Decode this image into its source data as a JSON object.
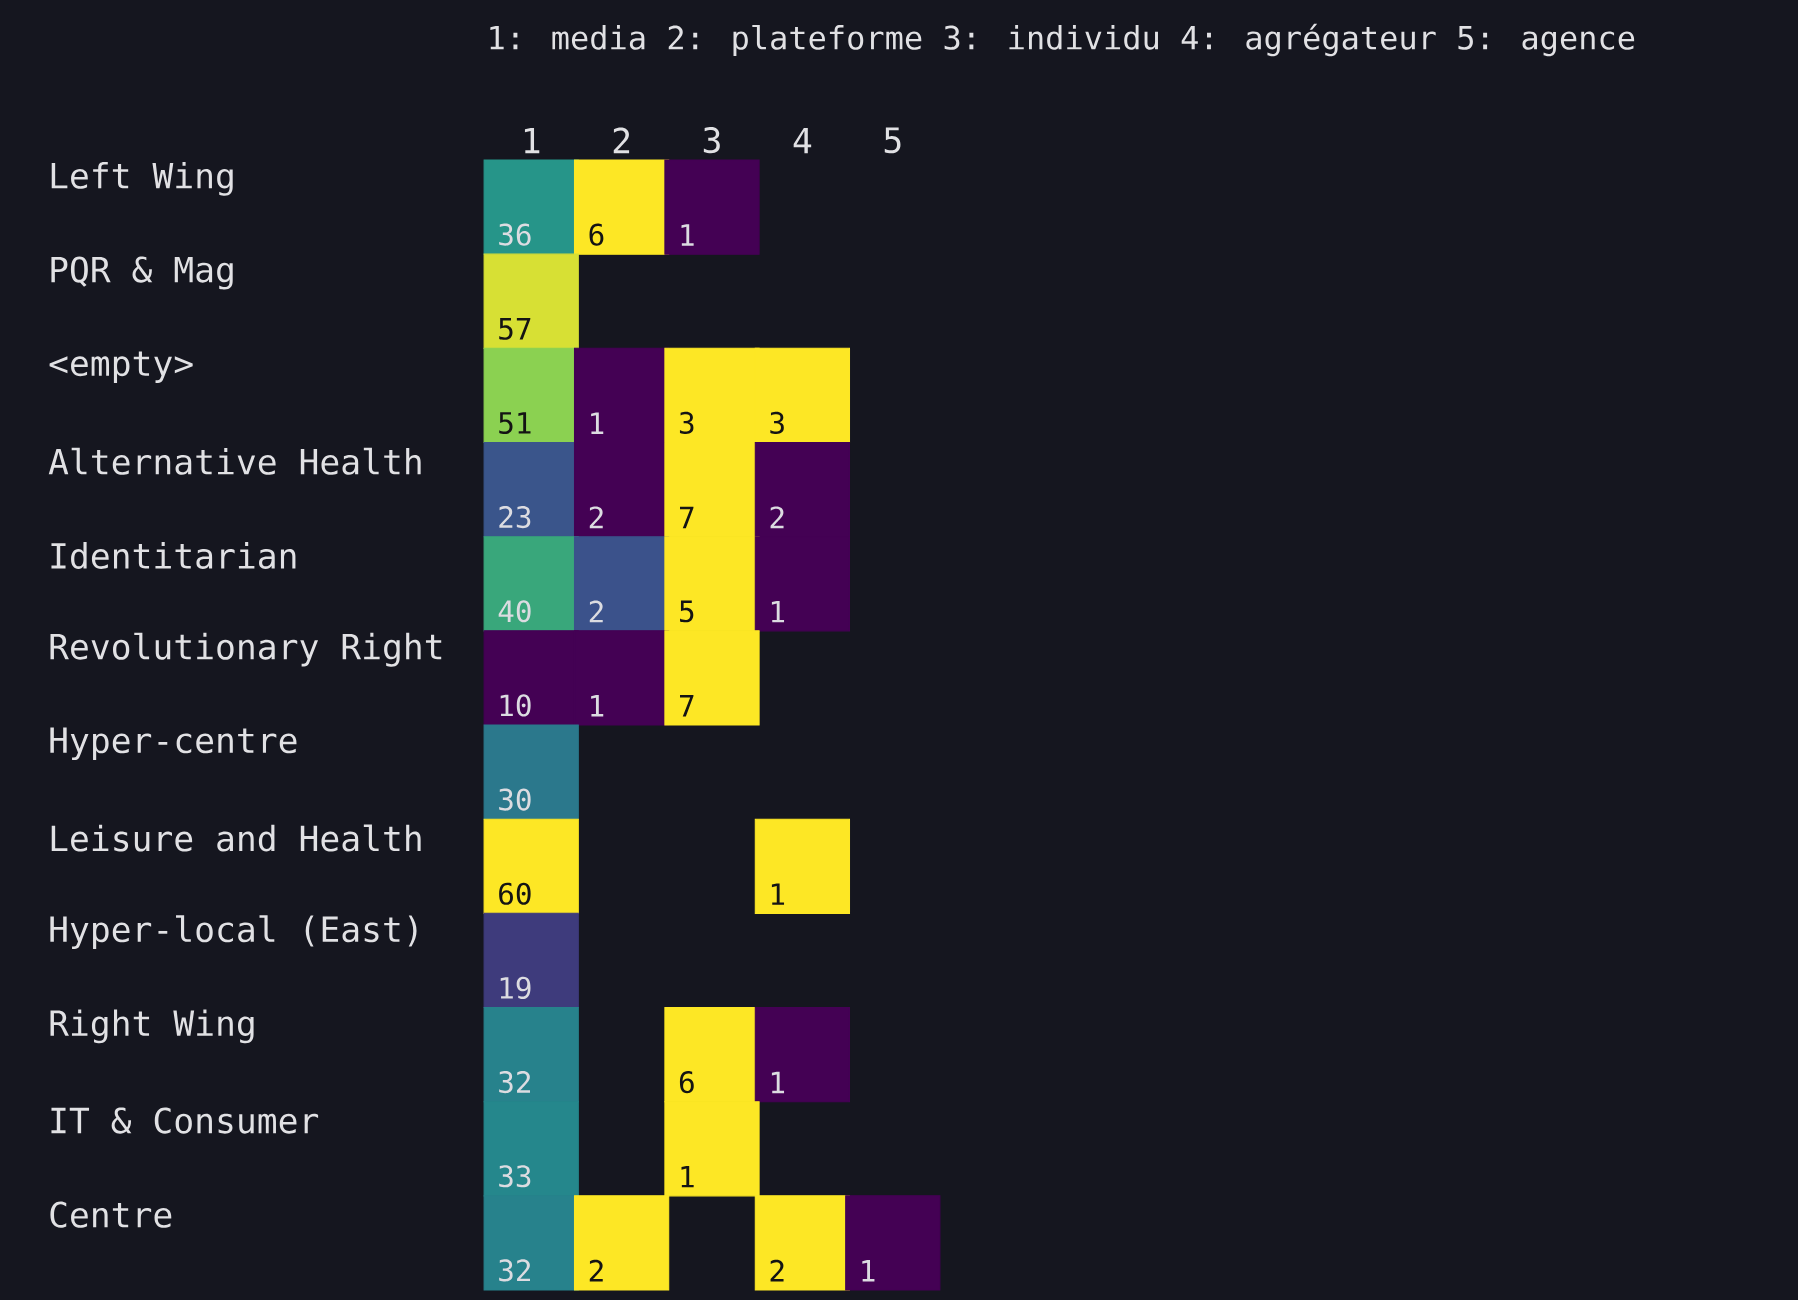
{
  "chart_data": {
    "type": "heatmap",
    "data_labels": true,
    "annotations": [
      "1: media",
      "2: plateforme",
      "3: individu",
      "4: agrégateur",
      "5: agence"
    ],
    "categories": [
      "1",
      "2",
      "3",
      "4",
      "5"
    ],
    "y_categories": [
      "Left Wing",
      "PQR & Mag",
      "<empty>",
      "Alternative Health",
      "Identitarian",
      "Revolutionary Right",
      "Hyper-centre",
      "Leisure and Health",
      "Hyper-local (East)",
      "Right Wing",
      "IT & Consumer",
      "Centre"
    ],
    "cells": [
      [
        36,
        6,
        1,
        null,
        null
      ],
      [
        57,
        null,
        null,
        null,
        null
      ],
      [
        51,
        1,
        3,
        3,
        null
      ],
      [
        23,
        2,
        7,
        2,
        null
      ],
      [
        40,
        2,
        5,
        1,
        null
      ],
      [
        10,
        1,
        7,
        null,
        null
      ],
      [
        30,
        null,
        null,
        null,
        null
      ],
      [
        60,
        null,
        null,
        1,
        null
      ],
      [
        19,
        null,
        null,
        null,
        null
      ],
      [
        32,
        null,
        6,
        1,
        null
      ],
      [
        33,
        null,
        1,
        null,
        null
      ],
      [
        32,
        2,
        null,
        2,
        1
      ]
    ]
  }
}
